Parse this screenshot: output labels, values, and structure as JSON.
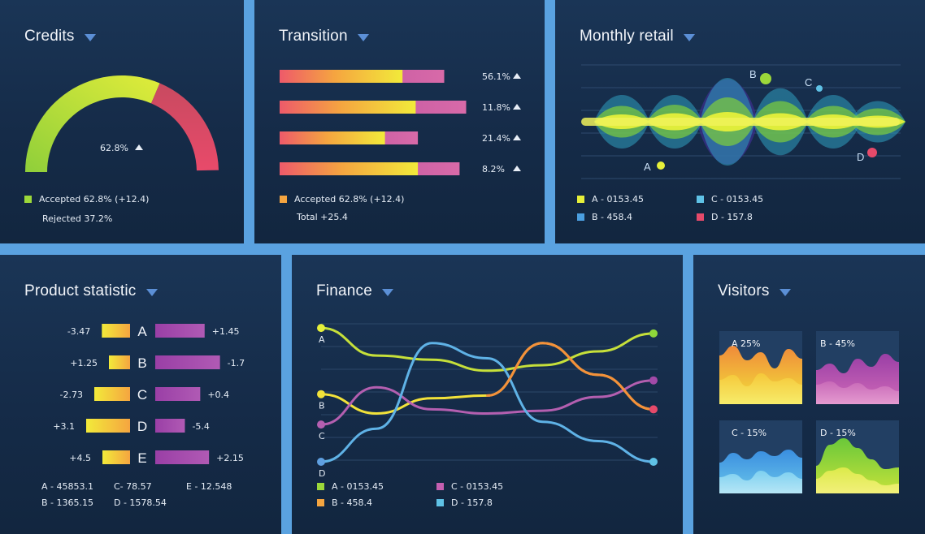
{
  "colors": {
    "yellow": "#e6f03a",
    "lime": "#9cd83a",
    "orange": "#f5a540",
    "red": "#e64a6a",
    "pink": "#c45fb0",
    "purple": "#a24aa8",
    "cyan": "#5fc2e6",
    "blue": "#4b9fe0",
    "accent": "#5b8fd6"
  },
  "credits": {
    "title": "Credits",
    "gauge_label": "62.8%",
    "legend": [
      {
        "text": "Accepted 62.8% (+12.4)",
        "color": "#9cd83a"
      },
      {
        "text": "Rejected 37.2%",
        "color": ""
      }
    ]
  },
  "transition": {
    "title": "Transition",
    "legend": [
      {
        "text": "Accepted 62.8% (+12.4)",
        "color": "#f5a540"
      },
      {
        "text": "Total +25.4",
        "color": ""
      }
    ]
  },
  "monthly_retail": {
    "title": "Monthly retail",
    "points": [
      "A",
      "B",
      "C",
      "D"
    ],
    "legend": [
      {
        "text": "A - 0153.45",
        "color": "#e6f03a"
      },
      {
        "text": "C - 0153.45",
        "color": "#5fc2e6"
      },
      {
        "text": "B - 458.4",
        "color": "#4b9fe0"
      },
      {
        "text": "D - 157.8",
        "color": "#e64a6a"
      }
    ]
  },
  "product_statistic": {
    "title": "Product statistic",
    "summary": [
      "A - 45853.1",
      "C- 78.57",
      "E - 12.548",
      "B - 1365.15",
      "D - 1578.54"
    ]
  },
  "finance": {
    "title": "Finance",
    "legend": [
      {
        "text": "A - 0153.45",
        "color": "#9cd83a"
      },
      {
        "text": "C - 0153.45",
        "color": "#c45fb0"
      },
      {
        "text": "B - 458.4",
        "color": "#f5a540"
      },
      {
        "text": "D - 157.8",
        "color": "#5fc2e6"
      }
    ]
  },
  "visitors": {
    "title": "Visitors",
    "cards": [
      {
        "label": "A  25%"
      },
      {
        "label": "B - 45%"
      },
      {
        "label": "C - 15%"
      },
      {
        "label": "D - 15%"
      }
    ]
  },
  "chart_data": [
    {
      "type": "gauge",
      "title": "Credits",
      "value": 62.8,
      "max": 100,
      "series": [
        {
          "name": "Accepted",
          "value": 62.8
        },
        {
          "name": "Rejected",
          "value": 37.2
        }
      ]
    },
    {
      "type": "bar",
      "title": "Transition",
      "orientation": "horizontal",
      "value_labels": [
        "56.1%",
        "11.8%",
        "21.4%",
        "8.2%"
      ],
      "primary": [
        0.56,
        0.62,
        0.48,
        0.63
      ],
      "secondary": [
        0.75,
        0.85,
        0.63,
        0.82
      ]
    },
    {
      "type": "bar",
      "title": "Product statistic",
      "categories": [
        "A",
        "B",
        "C",
        "D",
        "E"
      ],
      "left_labels": [
        "-3.47",
        "+1.25",
        "-2.73",
        "+3.1",
        "+4.5"
      ],
      "right_labels": [
        "+1.45",
        "-1.7",
        "+0.4",
        "-5.4",
        "+2.15"
      ],
      "left_values": [
        3.47,
        2.6,
        4.4,
        5.4,
        3.4
      ],
      "right_values": [
        4.5,
        5.9,
        4.1,
        2.7,
        4.9
      ]
    },
    {
      "type": "line",
      "title": "Finance",
      "x": [
        0,
        1,
        2,
        3,
        4,
        5,
        6
      ],
      "series": [
        {
          "name": "A",
          "values": [
            0.97,
            0.77,
            0.74,
            0.66,
            0.7,
            0.8,
            0.93
          ]
        },
        {
          "name": "B",
          "values": [
            0.49,
            0.35,
            0.46,
            0.48,
            0.86,
            0.63,
            0.38
          ]
        },
        {
          "name": "C",
          "values": [
            0.27,
            0.54,
            0.38,
            0.35,
            0.37,
            0.47,
            0.59
          ]
        },
        {
          "name": "D",
          "values": [
            0.0,
            0.24,
            0.86,
            0.75,
            0.29,
            0.15,
            0.0
          ]
        }
      ]
    },
    {
      "type": "area",
      "title": "Visitors",
      "series": [
        {
          "name": "A",
          "value": 25
        },
        {
          "name": "B",
          "value": 45
        },
        {
          "name": "C",
          "value": 15
        },
        {
          "name": "D",
          "value": 15
        }
      ]
    }
  ]
}
